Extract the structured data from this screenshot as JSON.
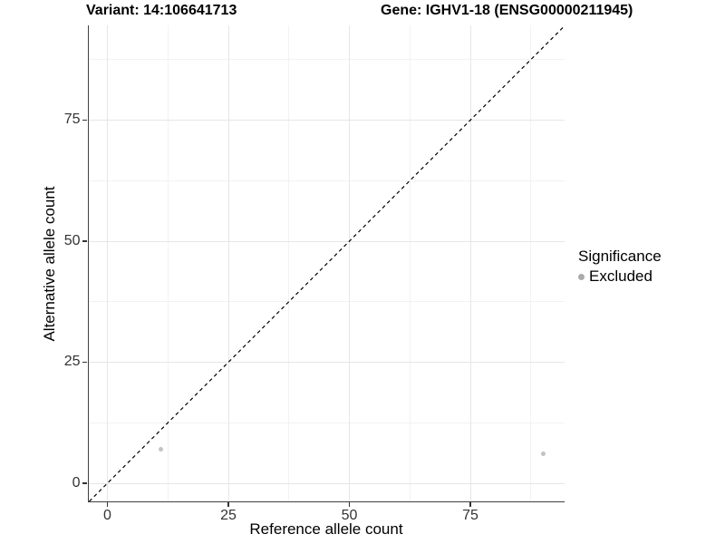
{
  "chart_data": {
    "type": "scatter",
    "title_left": "Variant: 14:106641713",
    "title_right": "Gene: IGHV1-18 (ENSG00000211945)",
    "xlabel": "Reference allele count",
    "ylabel": "Alternative allele count",
    "x_ticks": [
      0,
      25,
      50,
      75
    ],
    "y_ticks": [
      0,
      25,
      50,
      75
    ],
    "xlim": [
      -4,
      94.5
    ],
    "ylim": [
      -3.8,
      94.8
    ],
    "grid": true,
    "identity_line": {
      "style": "dashed",
      "color": "#000000",
      "from": [
        -3.75,
        -3.75
      ],
      "to": [
        94.3,
        94.3
      ]
    },
    "series": [
      {
        "name": "Excluded",
        "color": "#c3c3c3",
        "points": [
          {
            "x": 11,
            "y": 7
          },
          {
            "x": 90,
            "y": 6
          }
        ]
      }
    ],
    "legend": {
      "title": "Significance",
      "position": "right",
      "items": [
        {
          "label": "Excluded",
          "color": "#aaaaaa"
        }
      ]
    },
    "colors": {
      "background": "#ffffff",
      "grid_major": "#e6e6e6",
      "grid_minor": "#f2f2f2",
      "axis_line": "#404040",
      "tick_mark": "#333333",
      "tick_label": "#333333"
    }
  }
}
